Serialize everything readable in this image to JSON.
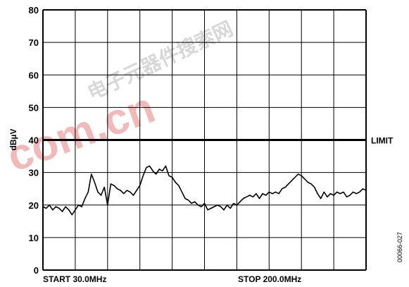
{
  "chart_data": {
    "type": "line",
    "title": "",
    "ylabel": "dBµV",
    "xlabel": "",
    "ylim": [
      0,
      80
    ],
    "yticks": [
      "0",
      "10",
      "20",
      "30",
      "40",
      "50",
      "60",
      "70",
      "80"
    ],
    "grid": true,
    "x_start_label": "START 30.0MHz",
    "x_stop_label": "STOP 200.0MHz",
    "limit": {
      "label": "LIMIT",
      "value": 40
    },
    "figure_id": "00066-027",
    "watermark": {
      "hanzi": "电子元器件搜索网",
      "latin": "com.cn"
    },
    "series": [
      {
        "x": [
          30.0,
          31.7,
          33.4,
          35.1,
          36.8,
          38.5,
          40.2,
          41.9,
          43.6,
          45.3,
          47.0,
          48.7,
          50.4,
          52.1,
          53.8,
          55.5,
          57.2,
          58.9,
          60.6,
          62.3,
          64.0,
          65.7,
          67.4,
          69.1,
          70.8,
          72.5,
          74.2,
          75.9,
          77.6,
          79.3,
          81.0,
          82.7,
          84.4,
          86.1,
          87.8,
          89.5,
          91.2,
          92.9,
          94.6,
          96.3,
          98.0,
          99.7,
          101.4,
          103.1,
          104.8,
          106.5,
          108.2,
          109.9,
          111.6,
          113.3,
          115.0,
          116.7,
          118.4,
          120.1,
          121.8,
          123.5,
          125.2,
          126.9,
          128.6,
          130.3,
          132.0,
          133.7,
          135.4,
          137.1,
          138.8,
          140.5,
          142.2,
          143.9,
          145.6,
          147.3,
          149.0,
          150.7,
          152.4,
          154.1,
          155.8,
          157.5,
          159.2,
          160.9,
          162.6,
          164.3,
          166.0,
          167.7,
          169.4,
          171.1,
          172.8,
          174.5,
          176.2,
          177.9,
          179.6,
          181.3,
          183.0,
          184.7,
          186.4,
          188.1,
          189.8,
          191.5,
          193.2,
          194.9,
          196.6,
          198.3,
          200.0
        ],
        "values": [
          19.5,
          19.0,
          20.0,
          18.5,
          19.5,
          19.0,
          18.0,
          19.5,
          18.5,
          17.0,
          18.5,
          20.0,
          19.5,
          22.0,
          24.0,
          29.5,
          27.0,
          24.0,
          23.0,
          25.5,
          20.0,
          26.5,
          26.0,
          25.0,
          24.5,
          23.5,
          24.5,
          24.0,
          23.0,
          24.5,
          26.0,
          29.0,
          31.5,
          32.0,
          30.5,
          29.5,
          31.0,
          30.5,
          32.0,
          29.0,
          28.5,
          27.0,
          26.0,
          24.0,
          22.0,
          21.5,
          20.5,
          21.0,
          20.0,
          19.5,
          20.5,
          18.5,
          19.0,
          19.5,
          20.0,
          19.5,
          18.5,
          20.0,
          19.0,
          20.5,
          20.0,
          21.0,
          22.0,
          22.5,
          23.0,
          22.5,
          23.5,
          22.0,
          23.5,
          23.0,
          24.0,
          23.5,
          24.0,
          23.5,
          25.0,
          25.5,
          26.5,
          27.5,
          28.5,
          29.5,
          29.0,
          28.0,
          27.0,
          26.5,
          25.5,
          23.5,
          22.0,
          24.0,
          22.5,
          23.5,
          23.0,
          24.0,
          23.5,
          24.0,
          22.5,
          23.0,
          24.0,
          23.5,
          24.0,
          25.0,
          24.5
        ]
      }
    ]
  }
}
